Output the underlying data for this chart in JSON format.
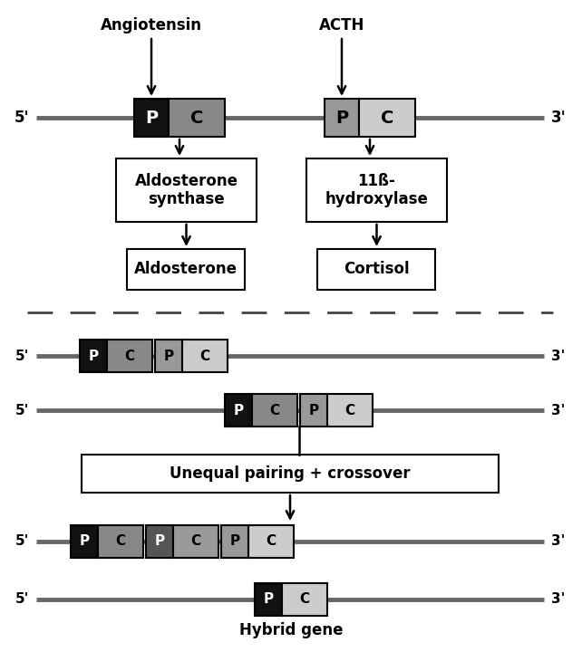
{
  "bg_color": "#ffffff",
  "line_color": "#666666",
  "line_width": 3.5,
  "box_edge_color": "#000000",
  "dashed_line_color": "#444444",
  "p_dark_color": "#111111",
  "c_dark_color": "#888888",
  "p_mid_color": "#555555",
  "c_mid_color": "#999999",
  "p_light_color": "#999999",
  "c_light_color": "#cccccc",
  "label_5prime": "5'",
  "label_3prime": "3'",
  "label_angiotensin": "Angiotensin",
  "label_acth": "ACTH",
  "label_aldosterone_synthase": "Aldosterone\nsynthase",
  "label_11b_hydroxylase": "11ß-\nhydroxylase",
  "label_aldosterone": "Aldosterone",
  "label_cortisol": "Cortisol",
  "label_unequal": "Unequal pairing + crossover",
  "label_hybrid": "Hybrid gene",
  "figsize": [
    6.42,
    7.2
  ],
  "dpi": 100
}
